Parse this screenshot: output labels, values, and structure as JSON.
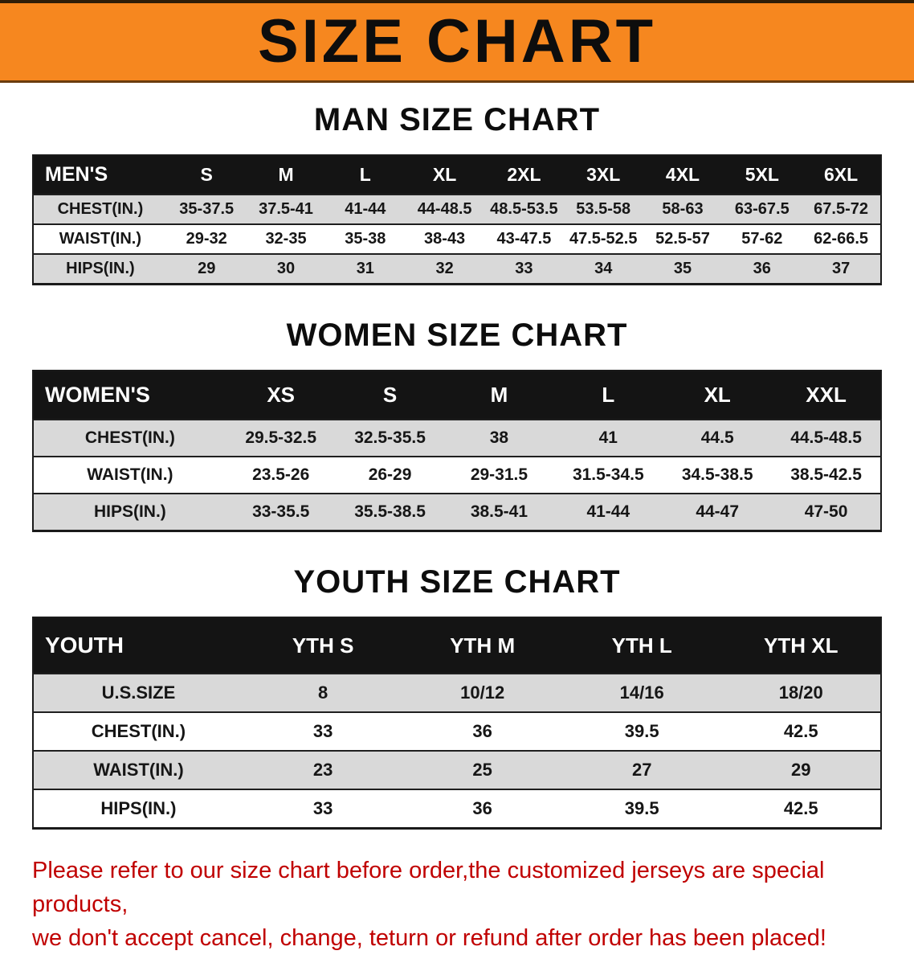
{
  "banner": {
    "title": "SIZE CHART"
  },
  "colors": {
    "banner_bg": "#F6871F",
    "table_header_bg": "#141414",
    "row_shaded": "#D9D9D9",
    "note_text": "#C00000"
  },
  "sections": [
    {
      "id": "men",
      "heading": "MAN SIZE CHART",
      "table": {
        "header": [
          "MEN'S",
          "S",
          "M",
          "L",
          "XL",
          "2XL",
          "3XL",
          "4XL",
          "5XL",
          "6XL"
        ],
        "rows": [
          {
            "label": "CHEST(IN.)",
            "shaded": true,
            "values": [
              "35-37.5",
              "37.5-41",
              "41-44",
              "44-48.5",
              "48.5-53.5",
              "53.5-58",
              "58-63",
              "63-67.5",
              "67.5-72"
            ]
          },
          {
            "label": "WAIST(IN.)",
            "shaded": false,
            "values": [
              "29-32",
              "32-35",
              "35-38",
              "38-43",
              "43-47.5",
              "47.5-52.5",
              "52.5-57",
              "57-62",
              "62-66.5"
            ]
          },
          {
            "label": "HIPS(IN.)",
            "shaded": true,
            "values": [
              "29",
              "30",
              "31",
              "32",
              "33",
              "34",
              "35",
              "36",
              "37"
            ]
          }
        ]
      }
    },
    {
      "id": "women",
      "heading": "WOMEN SIZE CHART",
      "table": {
        "header": [
          "WOMEN'S",
          "XS",
          "S",
          "M",
          "L",
          "XL",
          "XXL"
        ],
        "rows": [
          {
            "label": "CHEST(IN.)",
            "shaded": true,
            "values": [
              "29.5-32.5",
              "32.5-35.5",
              "38",
              "41",
              "44.5",
              "44.5-48.5"
            ]
          },
          {
            "label": "WAIST(IN.)",
            "shaded": false,
            "values": [
              "23.5-26",
              "26-29",
              "29-31.5",
              "31.5-34.5",
              "34.5-38.5",
              "38.5-42.5"
            ]
          },
          {
            "label": "HIPS(IN.)",
            "shaded": true,
            "values": [
              "33-35.5",
              "35.5-38.5",
              "38.5-41",
              "41-44",
              "44-47",
              "47-50"
            ]
          }
        ]
      }
    },
    {
      "id": "youth",
      "heading": "YOUTH SIZE CHART",
      "table": {
        "header": [
          "YOUTH",
          "YTH S",
          "YTH M",
          "YTH L",
          "YTH XL"
        ],
        "rows": [
          {
            "label": "U.S.SIZE",
            "shaded": true,
            "values": [
              "8",
              "10/12",
              "14/16",
              "18/20"
            ]
          },
          {
            "label": "CHEST(IN.)",
            "shaded": false,
            "values": [
              "33",
              "36",
              "39.5",
              "42.5"
            ]
          },
          {
            "label": "WAIST(IN.)",
            "shaded": true,
            "values": [
              "23",
              "25",
              "27",
              "29"
            ]
          },
          {
            "label": "HIPS(IN.)",
            "shaded": false,
            "values": [
              "33",
              "36",
              "39.5",
              "42.5"
            ]
          }
        ]
      }
    }
  ],
  "note": {
    "line1": "Please refer to our size chart before order,the customized jerseys are special products,",
    "line2": "we don't accept cancel, change, teturn or refund after order has been placed!"
  }
}
